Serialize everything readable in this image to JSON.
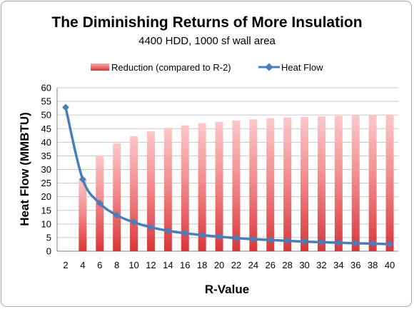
{
  "chart_data": {
    "type": "bar",
    "title": "The Diminishing Returns of More Insulation",
    "subtitle": "4400 HDD, 1000 sf wall area",
    "xlabel": "R-Value",
    "ylabel": "Heat Flow (MMBTU)",
    "ylim": [
      0,
      60
    ],
    "yticks": [
      0,
      5,
      10,
      15,
      20,
      25,
      30,
      35,
      40,
      45,
      50,
      55,
      60
    ],
    "grid": true,
    "legend_position": "top",
    "categories": [
      "2",
      "4",
      "6",
      "8",
      "10",
      "12",
      "14",
      "16",
      "18",
      "20",
      "22",
      "24",
      "26",
      "28",
      "30",
      "32",
      "34",
      "36",
      "38",
      "40"
    ],
    "series": [
      {
        "name": "Reduction (compared to R-2)",
        "kind": "bar",
        "color": "#e8474a",
        "values": [
          0,
          26.4,
          35.2,
          39.6,
          42.2,
          44.0,
          45.3,
          46.2,
          47.0,
          47.5,
          48.0,
          48.4,
          48.8,
          49.1,
          49.3,
          49.5,
          49.7,
          49.9,
          50.0,
          50.2
        ]
      },
      {
        "name": "Heat Flow",
        "kind": "line",
        "color": "#4a7ebb",
        "values": [
          52.8,
          26.4,
          17.6,
          13.2,
          10.6,
          8.8,
          7.5,
          6.6,
          5.9,
          5.3,
          4.8,
          4.4,
          4.1,
          3.8,
          3.5,
          3.3,
          3.1,
          2.9,
          2.8,
          2.6
        ]
      }
    ]
  }
}
